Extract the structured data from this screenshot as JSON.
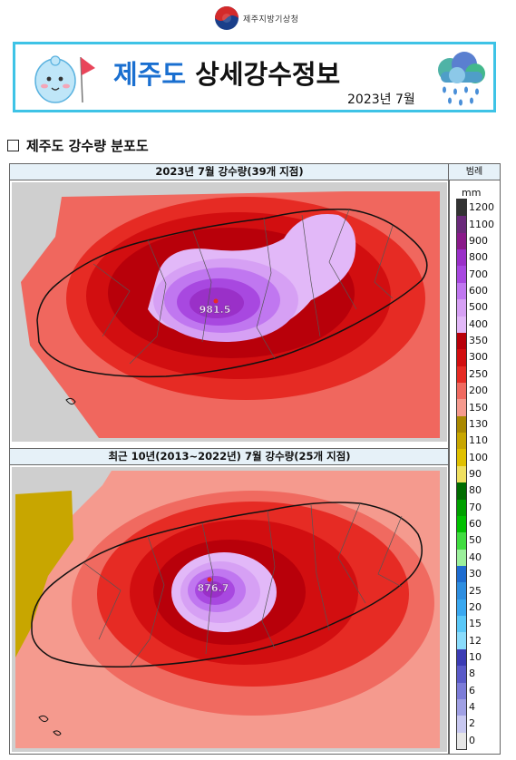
{
  "header": {
    "agency": "제주지방기상청",
    "title_highlight": "제주도",
    "title_rest": "상세강수정보",
    "date": "2023년 7월"
  },
  "section_title": "제주도 강수량 분포도",
  "panels": [
    {
      "title": "2023년 7월 강수량(39개 지점)",
      "max_value": "981.5"
    },
    {
      "title": "최근 10년(2013~2022년) 7월 강수량(25개 지점)",
      "max_value": "876.7"
    }
  ],
  "legend": {
    "title": "범례",
    "unit": "mm",
    "steps": [
      {
        "label": "1200",
        "color": "#333333"
      },
      {
        "label": "1100",
        "color": "#6a2a7a"
      },
      {
        "label": "900",
        "color": "#8a1a8a"
      },
      {
        "label": "800",
        "color": "#9a30c8"
      },
      {
        "label": "700",
        "color": "#a848e0"
      },
      {
        "label": "600",
        "color": "#c077f0"
      },
      {
        "label": "500",
        "color": "#d6a0f4"
      },
      {
        "label": "400",
        "color": "#e2b8f8"
      },
      {
        "label": "350",
        "color": "#b8000a"
      },
      {
        "label": "300",
        "color": "#d20e10"
      },
      {
        "label": "250",
        "color": "#e62b24"
      },
      {
        "label": "200",
        "color": "#f06a60"
      },
      {
        "label": "150",
        "color": "#f59a8e"
      },
      {
        "label": "130",
        "color": "#aa8800"
      },
      {
        "label": "110",
        "color": "#c8a600"
      },
      {
        "label": "100",
        "color": "#e0c000"
      },
      {
        "label": "90",
        "color": "#f0e060"
      },
      {
        "label": "80",
        "color": "#006c00"
      },
      {
        "label": "70",
        "color": "#00a000"
      },
      {
        "label": "60",
        "color": "#00c000"
      },
      {
        "label": "50",
        "color": "#40dc40"
      },
      {
        "label": "40",
        "color": "#9cf09c"
      },
      {
        "label": "30",
        "color": "#1e6cd0"
      },
      {
        "label": "25",
        "color": "#2e8ee0"
      },
      {
        "label": "20",
        "color": "#3aa8f0"
      },
      {
        "label": "15",
        "color": "#5ac8f8"
      },
      {
        "label": "12",
        "color": "#8adcfc"
      },
      {
        "label": "10",
        "color": "#3c3cb4"
      },
      {
        "label": "8",
        "color": "#5a5ac8"
      },
      {
        "label": "6",
        "color": "#7c7cd8"
      },
      {
        "label": "4",
        "color": "#a0a0e4"
      },
      {
        "label": "2",
        "color": "#c8c8f0"
      },
      {
        "label": "0",
        "color": "#e6e6e6"
      }
    ]
  }
}
